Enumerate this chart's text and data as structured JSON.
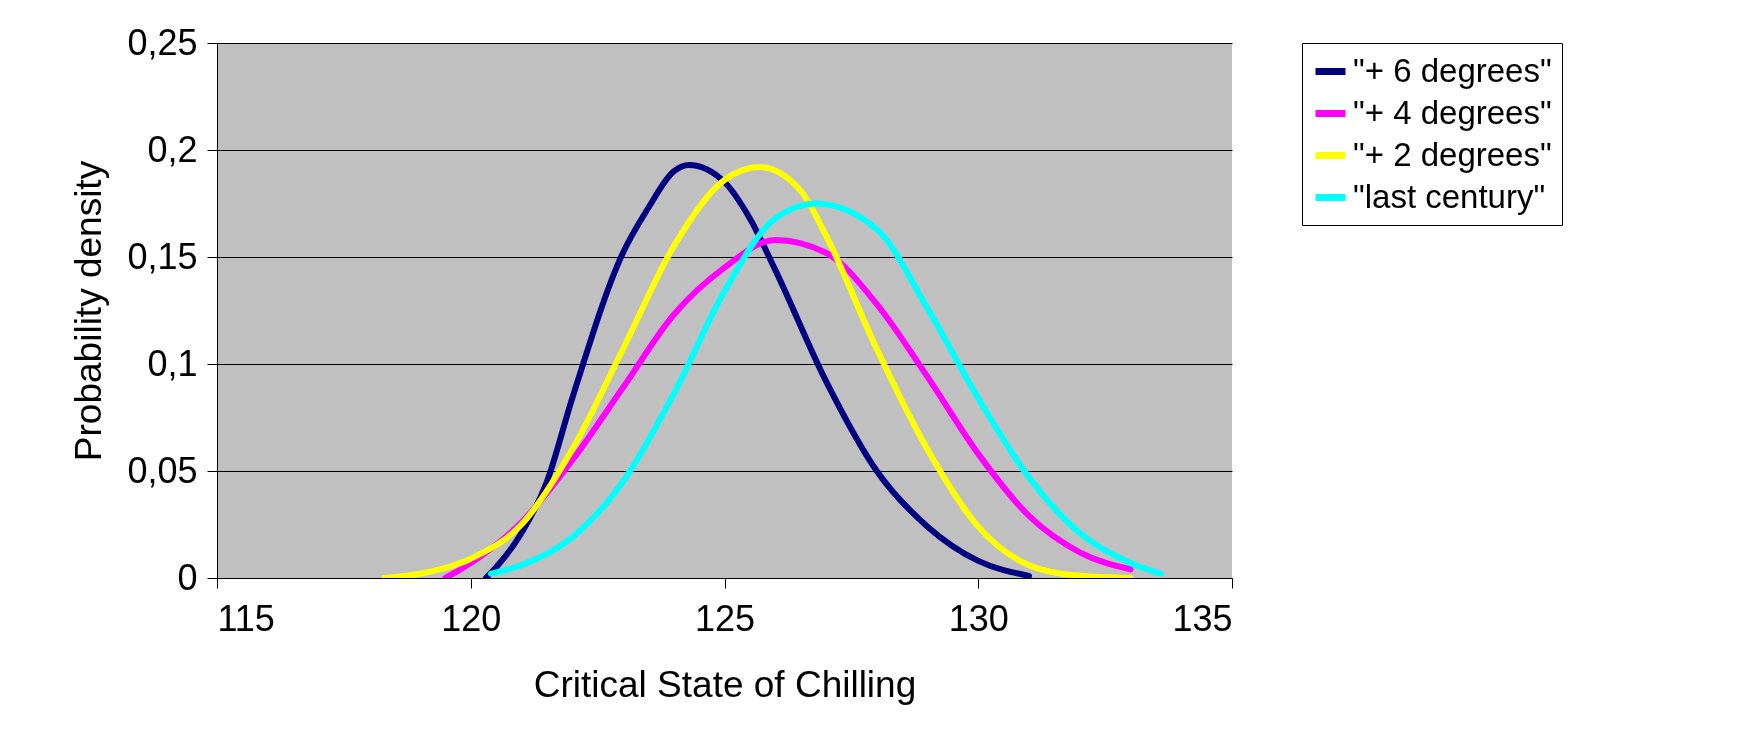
{
  "chart_data": {
    "type": "line",
    "xlabel": "Critical State of Chilling",
    "ylabel": "Probability density",
    "xlim": [
      115,
      135
    ],
    "xticks": [
      115,
      120,
      125,
      130,
      135
    ],
    "ylim": [
      0,
      0.25
    ],
    "yticks": [
      0,
      {
        "value": 0.05,
        "label": "0,05"
      },
      {
        "value": 0.1,
        "label": "0,1"
      },
      {
        "value": 0.15,
        "label": "0,15"
      },
      {
        "value": 0.2,
        "label": "0,2"
      },
      {
        "value": 0.25,
        "label": "0,25"
      }
    ],
    "grid": "y",
    "legend": "right",
    "marker": "none",
    "line_style": "solid",
    "series": [
      {
        "name": "\"+ 6 degrees\"",
        "color": "#000080",
        "x": [
          120.3,
          120.5,
          121,
          121.5,
          122,
          123,
          123.5,
          124,
          124.3,
          125,
          125.5,
          126,
          127,
          128,
          129,
          130,
          131
        ],
        "values": [
          0,
          0.005,
          0.021,
          0.045,
          0.084,
          0.152,
          0.173,
          0.19,
          0.193,
          0.185,
          0.168,
          0.144,
          0.092,
          0.05,
          0.024,
          0.008,
          0.001
        ]
      },
      {
        "name": "\"+ 4 degrees\"",
        "color": "#ff00ff",
        "x": [
          119.5,
          120,
          121,
          122,
          123,
          124,
          125,
          126,
          127,
          128,
          129,
          130,
          131,
          132,
          133
        ],
        "values": [
          0,
          0.007,
          0.026,
          0.055,
          0.089,
          0.123,
          0.145,
          0.158,
          0.152,
          0.128,
          0.094,
          0.058,
          0.029,
          0.012,
          0.004
        ]
      },
      {
        "name": "\"+ 2 degrees\"",
        "color": "#ffff00",
        "x": [
          118.3,
          119,
          120,
          121,
          122,
          123,
          124,
          125,
          125.7,
          126.5,
          127,
          128,
          129,
          130,
          131,
          132,
          133
        ],
        "values": [
          0,
          0.002,
          0.009,
          0.025,
          0.06,
          0.107,
          0.155,
          0.186,
          0.192,
          0.181,
          0.16,
          0.107,
          0.06,
          0.024,
          0.006,
          0.001,
          0
        ]
      },
      {
        "name": "\"last century\"",
        "color": "#00ffff",
        "x": [
          120.4,
          121,
          122,
          123,
          124,
          125,
          126,
          126.8,
          128,
          129,
          130,
          131,
          132,
          133,
          133.6
        ],
        "values": [
          0.002,
          0.006,
          0.019,
          0.045,
          0.086,
          0.134,
          0.168,
          0.175,
          0.163,
          0.126,
          0.084,
          0.047,
          0.021,
          0.007,
          0.002
        ]
      }
    ]
  }
}
